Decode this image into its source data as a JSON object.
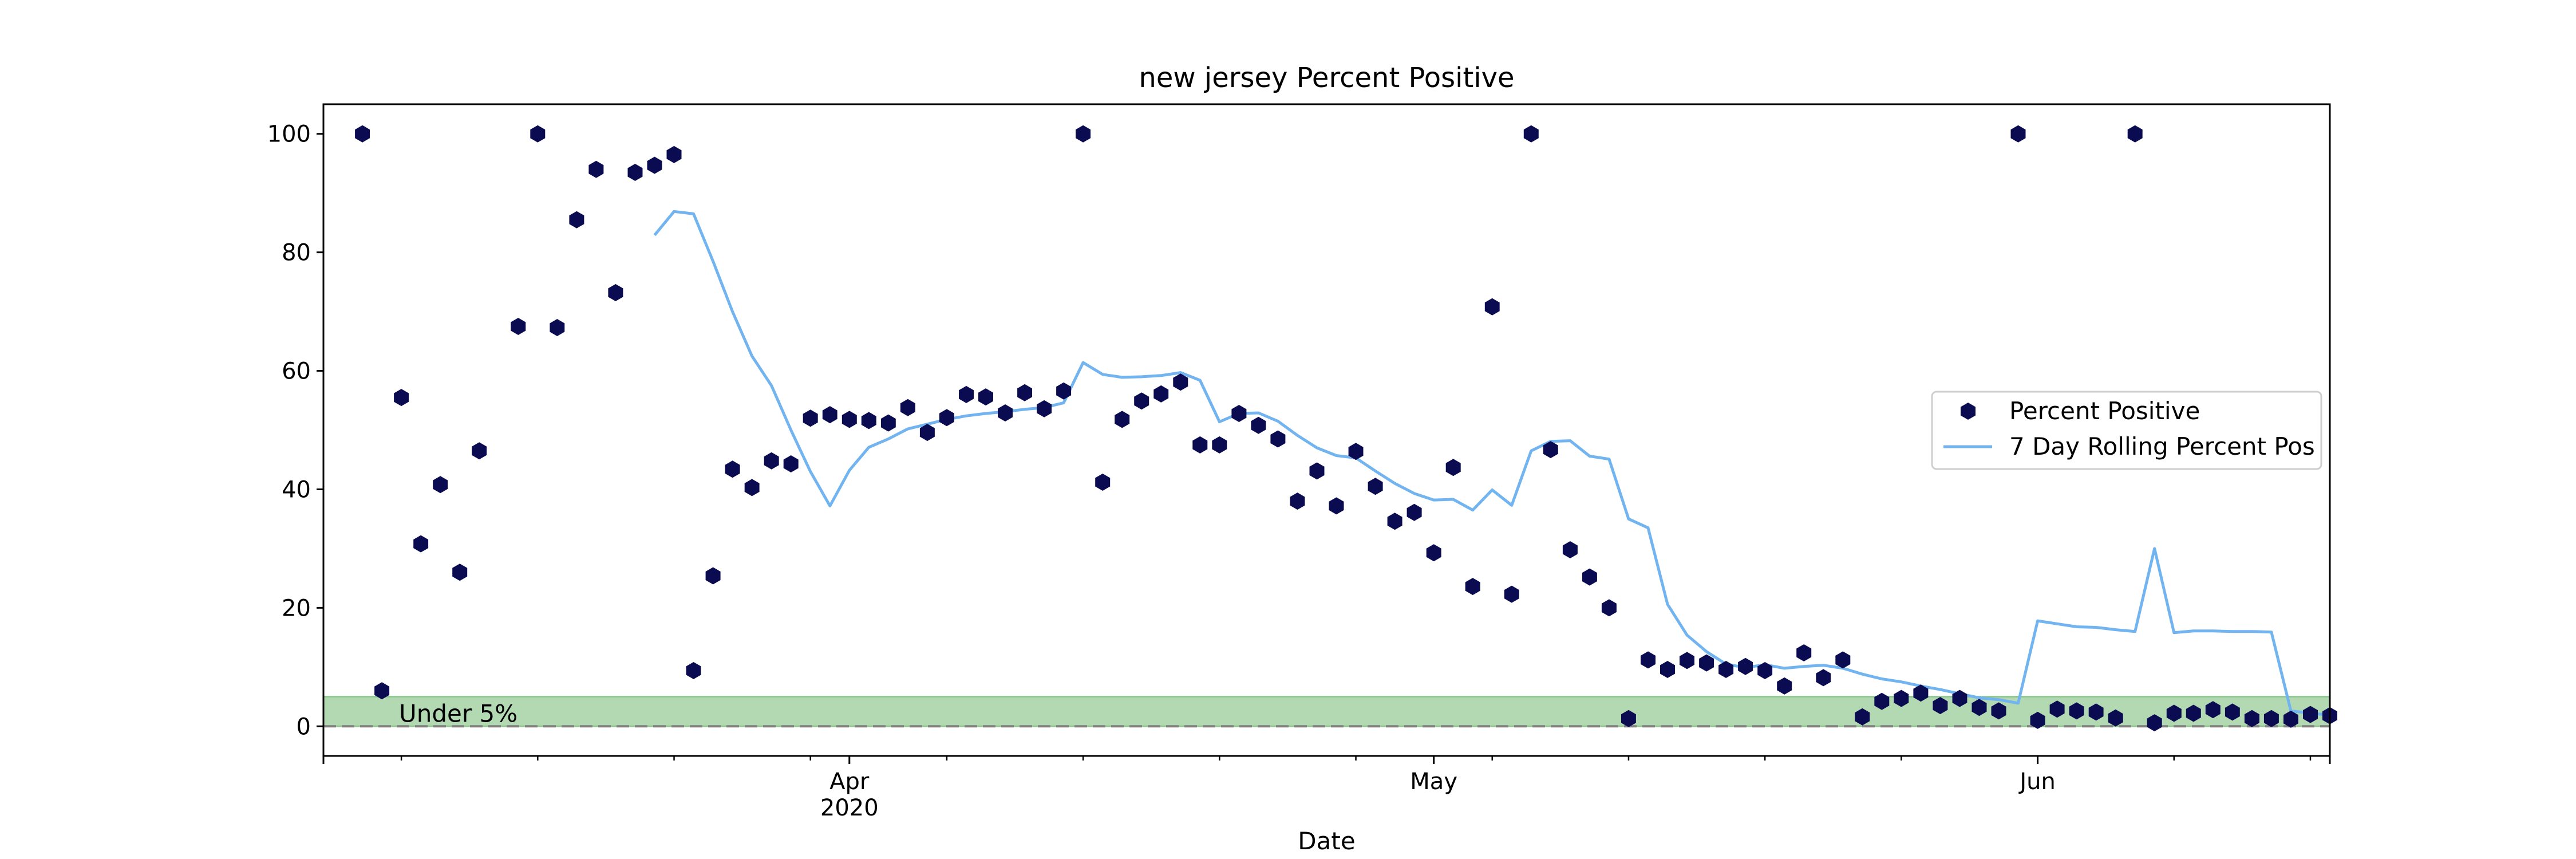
{
  "chart_data": {
    "type": "scatter",
    "title": "new jersey Percent Positive",
    "xlabel": "Date",
    "ylabel": "",
    "xlim": [
      "2020-03-05",
      "2020-06-16"
    ],
    "ylim": [
      -5,
      105
    ],
    "yticks": [
      0,
      20,
      40,
      60,
      80,
      100
    ],
    "xticks": [
      {
        "date": "2020-04-01",
        "label": "Apr",
        "sublabel": "2020"
      },
      {
        "date": "2020-05-01",
        "label": "May",
        "sublabel": ""
      },
      {
        "date": "2020-06-01",
        "label": "Jun",
        "sublabel": ""
      }
    ],
    "grid": false,
    "legend": {
      "position": "center-right"
    },
    "band": {
      "y0": 0,
      "y1": 5,
      "label": "Under 5%",
      "color": "#b3d9b3",
      "edge": "#90c690"
    },
    "reference_line": {
      "y": 0,
      "color": "#808080"
    },
    "series": [
      {
        "name": "Percent Positive",
        "kind": "scatter",
        "color": "#0b0b52",
        "x": [
          "2020-03-07",
          "2020-03-08",
          "2020-03-09",
          "2020-03-10",
          "2020-03-11",
          "2020-03-12",
          "2020-03-13",
          "2020-03-15",
          "2020-03-16",
          "2020-03-17",
          "2020-03-18",
          "2020-03-19",
          "2020-03-20",
          "2020-03-21",
          "2020-03-22",
          "2020-03-23",
          "2020-03-24",
          "2020-03-25",
          "2020-03-26",
          "2020-03-27",
          "2020-03-28",
          "2020-03-29",
          "2020-03-30",
          "2020-03-31",
          "2020-04-01",
          "2020-04-02",
          "2020-04-03",
          "2020-04-04",
          "2020-04-05",
          "2020-04-06",
          "2020-04-07",
          "2020-04-08",
          "2020-04-09",
          "2020-04-10",
          "2020-04-11",
          "2020-04-12",
          "2020-04-13",
          "2020-04-14",
          "2020-04-15",
          "2020-04-16",
          "2020-04-17",
          "2020-04-18",
          "2020-04-19",
          "2020-04-20",
          "2020-04-21",
          "2020-04-22",
          "2020-04-23",
          "2020-04-24",
          "2020-04-25",
          "2020-04-26",
          "2020-04-27",
          "2020-04-28",
          "2020-04-29",
          "2020-04-30",
          "2020-05-01",
          "2020-05-02",
          "2020-05-03",
          "2020-05-04",
          "2020-05-05",
          "2020-05-06",
          "2020-05-07",
          "2020-05-08",
          "2020-05-09",
          "2020-05-10",
          "2020-05-11",
          "2020-05-12",
          "2020-05-13",
          "2020-05-14",
          "2020-05-15",
          "2020-05-16",
          "2020-05-17",
          "2020-05-18",
          "2020-05-19",
          "2020-05-20",
          "2020-05-21",
          "2020-05-22",
          "2020-05-23",
          "2020-05-24",
          "2020-05-25",
          "2020-05-26",
          "2020-05-27",
          "2020-05-28",
          "2020-05-29",
          "2020-05-30",
          "2020-05-31",
          "2020-06-01",
          "2020-06-02",
          "2020-06-03",
          "2020-06-04",
          "2020-06-05",
          "2020-06-06",
          "2020-06-07",
          "2020-06-08",
          "2020-06-09",
          "2020-06-10",
          "2020-06-11",
          "2020-06-12",
          "2020-06-13",
          "2020-06-14",
          "2020-06-15",
          "2020-06-16"
        ],
        "y": [
          100,
          6,
          55.5,
          30.8,
          40.8,
          26,
          46.5,
          67.5,
          100,
          67.3,
          85.5,
          94,
          73.2,
          93.5,
          94.7,
          96.5,
          9.4,
          25.4,
          43.4,
          40.3,
          44.8,
          44.3,
          52,
          52.6,
          51.8,
          51.6,
          51.2,
          53.8,
          49.6,
          52.1,
          56,
          55.6,
          52.9,
          56.3,
          53.6,
          56.6,
          100,
          41.2,
          51.8,
          54.9,
          56.1,
          58.1,
          47.5,
          47.5,
          52.8,
          50.8,
          48.5,
          38,
          43.1,
          37.2,
          46.4,
          40.5,
          34.6,
          36.1,
          29.3,
          43.7,
          23.6,
          70.8,
          22.3,
          100,
          46.7,
          29.8,
          25.2,
          20,
          1.3,
          11.2,
          9.6,
          11.1,
          10.7,
          9.6,
          10.1,
          9.4,
          6.8,
          12.4,
          8.2,
          11.2,
          1.6,
          4.2,
          4.7,
          5.6,
          3.5,
          4.7,
          3.2,
          2.6,
          100,
          1,
          2.9,
          2.6,
          2.4,
          1.4,
          100,
          0.6,
          2.2,
          2.2,
          2.8,
          2.4,
          1.3,
          1.3,
          1.2,
          2,
          1.8
        ]
      },
      {
        "name": "7 Day Rolling Percent Pos",
        "kind": "line",
        "color": "#72b4ef",
        "x": [
          "2020-03-22",
          "2020-03-23",
          "2020-03-24",
          "2020-03-25",
          "2020-03-26",
          "2020-03-27",
          "2020-03-28",
          "2020-03-29",
          "2020-03-30",
          "2020-03-31",
          "2020-04-01",
          "2020-04-02",
          "2020-04-03",
          "2020-04-04",
          "2020-04-05",
          "2020-04-06",
          "2020-04-07",
          "2020-04-08",
          "2020-04-09",
          "2020-04-10",
          "2020-04-11",
          "2020-04-12",
          "2020-04-13",
          "2020-04-14",
          "2020-04-15",
          "2020-04-16",
          "2020-04-17",
          "2020-04-18",
          "2020-04-19",
          "2020-04-20",
          "2020-04-21",
          "2020-04-22",
          "2020-04-23",
          "2020-04-24",
          "2020-04-25",
          "2020-04-26",
          "2020-04-27",
          "2020-04-28",
          "2020-04-29",
          "2020-04-30",
          "2020-05-01",
          "2020-05-02",
          "2020-05-03",
          "2020-05-04",
          "2020-05-05",
          "2020-05-06",
          "2020-05-07",
          "2020-05-08",
          "2020-05-09",
          "2020-05-10",
          "2020-05-11",
          "2020-05-12",
          "2020-05-13",
          "2020-05-14",
          "2020-05-15",
          "2020-05-16",
          "2020-05-17",
          "2020-05-18",
          "2020-05-19",
          "2020-05-20",
          "2020-05-21",
          "2020-05-22",
          "2020-05-23",
          "2020-05-24",
          "2020-05-25",
          "2020-05-26",
          "2020-05-27",
          "2020-05-28",
          "2020-05-29",
          "2020-05-30",
          "2020-05-31",
          "2020-06-01",
          "2020-06-02",
          "2020-06-03",
          "2020-06-04",
          "2020-06-05",
          "2020-06-06",
          "2020-06-07",
          "2020-06-08",
          "2020-06-09",
          "2020-06-10",
          "2020-06-11",
          "2020-06-12",
          "2020-06-13",
          "2020-06-14",
          "2020-06-15",
          "2020-06-16"
        ],
        "y": [
          82.9,
          86.9,
          86.5,
          78.5,
          70,
          62.5,
          57.5,
          50,
          43,
          37.2,
          43.2,
          47.1,
          48.5,
          50.2,
          51,
          51.8,
          52.4,
          52.8,
          53.1,
          53.5,
          53.8,
          54.6,
          61.4,
          59.4,
          58.9,
          59,
          59.2,
          59.7,
          58.4,
          51.4,
          52.8,
          52.9,
          51.5,
          49.1,
          47,
          45.7,
          45.3,
          43.1,
          41,
          39.3,
          38.2,
          38.3,
          36.5,
          39.9,
          37.3,
          46.5,
          48.1,
          48.2,
          45.6,
          45.1,
          35,
          33.5,
          20.6,
          15.4,
          12.6,
          10.5,
          9.9,
          10.4,
          9.8,
          10.1,
          10.3,
          9.8,
          8.8,
          8,
          7.5,
          6.8,
          6.2,
          5.5,
          4.8,
          4.5,
          3.9,
          17.8,
          17.3,
          16.8,
          16.7,
          16.3,
          16,
          30,
          15.8,
          16.1,
          16.1,
          16,
          16,
          15.9,
          2.6,
          2.2,
          1.9
        ]
      }
    ]
  }
}
